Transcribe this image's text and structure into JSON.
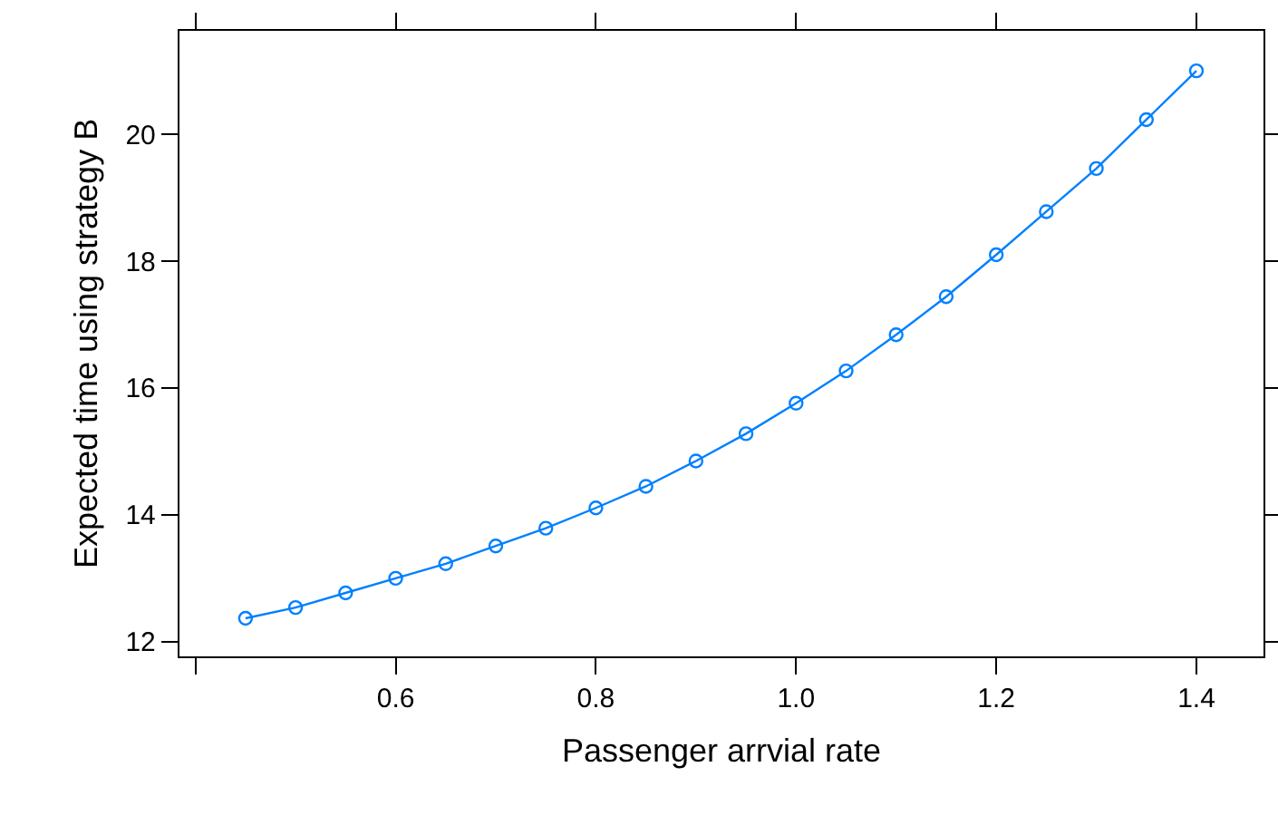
{
  "chart_data": {
    "type": "line",
    "xlabel": "Passenger arrvial rate",
    "ylabel": "Expected time using strategy B",
    "x": [
      0.45,
      0.5,
      0.55,
      0.6,
      0.65,
      0.7,
      0.75,
      0.8,
      0.85,
      0.9,
      0.95,
      1.0,
      1.05,
      1.1,
      1.15,
      1.2,
      1.25,
      1.3,
      1.35,
      1.4
    ],
    "series": [
      {
        "color": "#0080ff",
        "values": [
          12.37,
          12.54,
          12.77,
          13.0,
          13.23,
          13.51,
          13.79,
          14.11,
          14.45,
          14.85,
          15.28,
          15.76,
          16.27,
          16.84,
          17.44,
          18.1,
          18.78,
          19.46,
          20.23,
          21.0
        ]
      }
    ],
    "xlim": [
      0.384,
      1.467
    ],
    "ylim": [
      11.77,
      21.63
    ],
    "xticks": [
      {
        "value": 0.4,
        "label": null
      },
      {
        "value": 0.6,
        "label": "0.6"
      },
      {
        "value": 0.8,
        "label": "0.8"
      },
      {
        "value": 1.0,
        "label": "1.0"
      },
      {
        "value": 1.2,
        "label": "1.2"
      },
      {
        "value": 1.4,
        "label": "1.4"
      }
    ],
    "yticks": [
      12,
      14,
      16,
      18,
      20
    ],
    "grid": false,
    "marker": "circle",
    "line_style": "solid"
  }
}
